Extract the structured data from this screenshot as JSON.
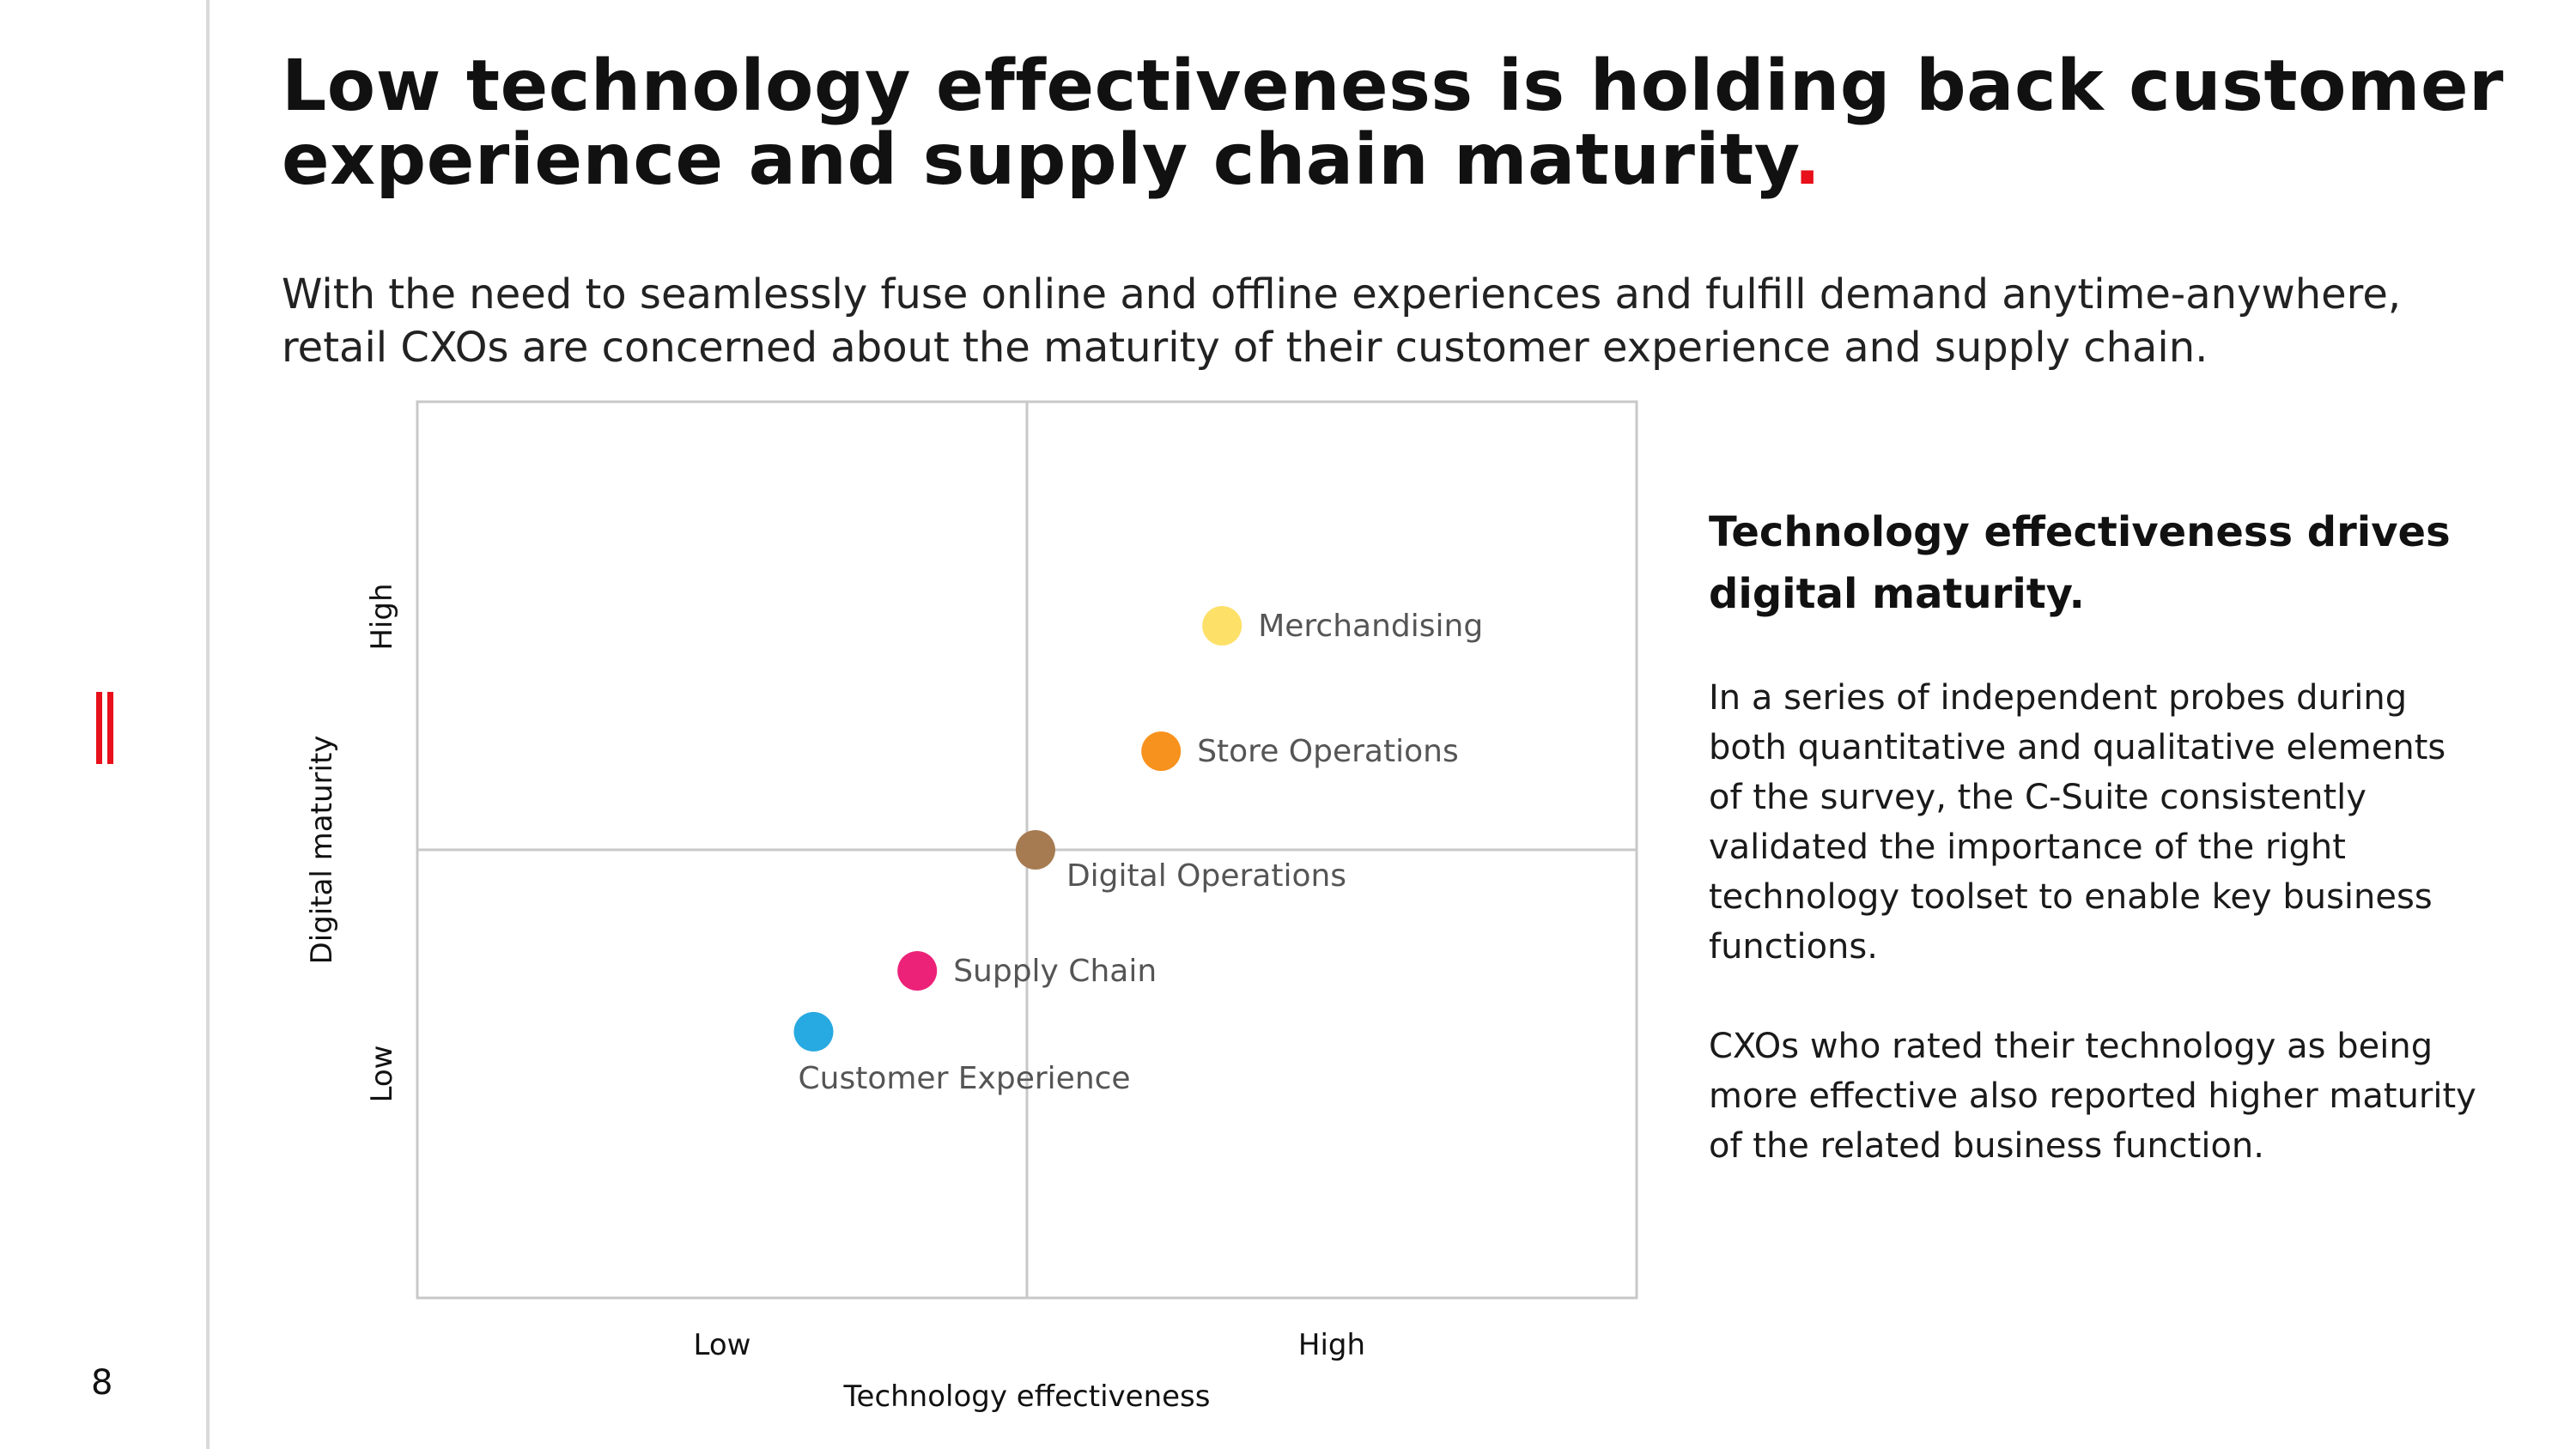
{
  "page": {
    "number": "8"
  },
  "brand": {
    "accent": "#e8101a"
  },
  "header": {
    "title": "Low technology effectiveness is holding back customer experience and supply chain maturity",
    "title_end": ".",
    "subtitle": "With the need to seamlessly fuse online and offline experiences and fulfill demand anytime-anywhere, retail CXOs are concerned about the maturity of their customer experience and supply chain."
  },
  "sidebar_text": {
    "heading": "Technology effectiveness drives digital maturity.",
    "paragraphs": [
      "In a series of independent probes during both quantitative and qualitative elements of the survey, the C-Suite consistently validated the importance of the right technology toolset to enable key business functions.",
      "CXOs who rated their technology as being more effective also reported higher maturity of the related business function."
    ]
  },
  "chart_data": {
    "type": "scatter",
    "title": "",
    "xlabel": "Technology effectiveness",
    "ylabel": "Digital maturity",
    "x_tick_labels": [
      "Low",
      "High"
    ],
    "y_tick_labels": [
      "Low",
      "High"
    ],
    "xlim": [
      0,
      1
    ],
    "ylim": [
      0,
      1
    ],
    "quadrant_dividers": {
      "x": 0.5,
      "y": 0.5
    },
    "grid": false,
    "legend": "none",
    "points": [
      {
        "label": "Merchandising",
        "x": 0.66,
        "y": 0.75,
        "color": "#fde068"
      },
      {
        "label": "Store Operations",
        "x": 0.61,
        "y": 0.61,
        "color": "#f7921e"
      },
      {
        "label": "Digital Operations",
        "x": 0.507,
        "y": 0.5,
        "color": "#a77b52"
      },
      {
        "label": "Supply Chain",
        "x": 0.41,
        "y": 0.365,
        "color": "#ec2279"
      },
      {
        "label": "Customer Experience",
        "x": 0.325,
        "y": 0.297,
        "color": "#27a9e1"
      }
    ]
  }
}
